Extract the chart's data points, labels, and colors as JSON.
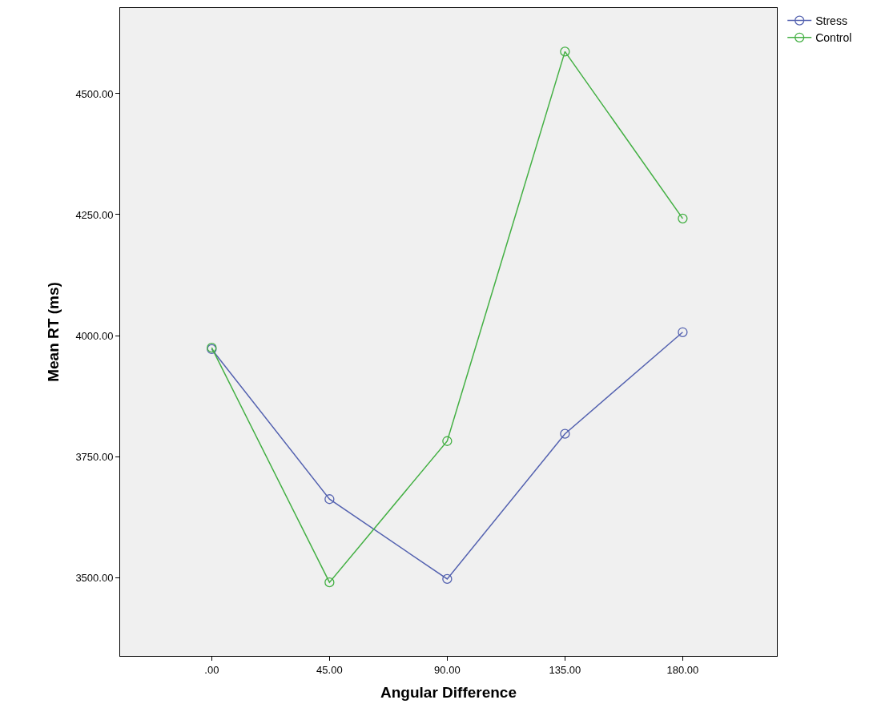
{
  "chart_data": {
    "type": "line",
    "xlabel": "Angular Difference",
    "ylabel": "Mean RT (ms)",
    "x": [
      0,
      45,
      90,
      135,
      180
    ],
    "series": [
      {
        "name": "Stress",
        "color": "#5462b0",
        "values": [
          3972,
          3662,
          3497,
          3797,
          4007
        ]
      },
      {
        "name": "Control",
        "color": "#44b044",
        "values": [
          3975,
          3490,
          3782,
          4587,
          4242
        ]
      }
    ],
    "xlim": [
      -35,
      216
    ],
    "xticks": [
      {
        "value": 0,
        "label": ".00"
      },
      {
        "value": 45,
        "label": "45.00"
      },
      {
        "value": 90,
        "label": "90.00"
      },
      {
        "value": 135,
        "label": "135.00"
      },
      {
        "value": 180,
        "label": "180.00"
      }
    ],
    "ylim": [
      3338,
      4677
    ],
    "yticks": [
      {
        "value": 3500,
        "label": "3500.00"
      },
      {
        "value": 3750,
        "label": "3750.00"
      },
      {
        "value": 4000,
        "label": "4000.00"
      },
      {
        "value": 4250,
        "label": "4250.00"
      },
      {
        "value": 4500,
        "label": "4500.00"
      }
    ],
    "grid": false,
    "legend": "top right",
    "marker": "circle",
    "line_style": "solid"
  }
}
